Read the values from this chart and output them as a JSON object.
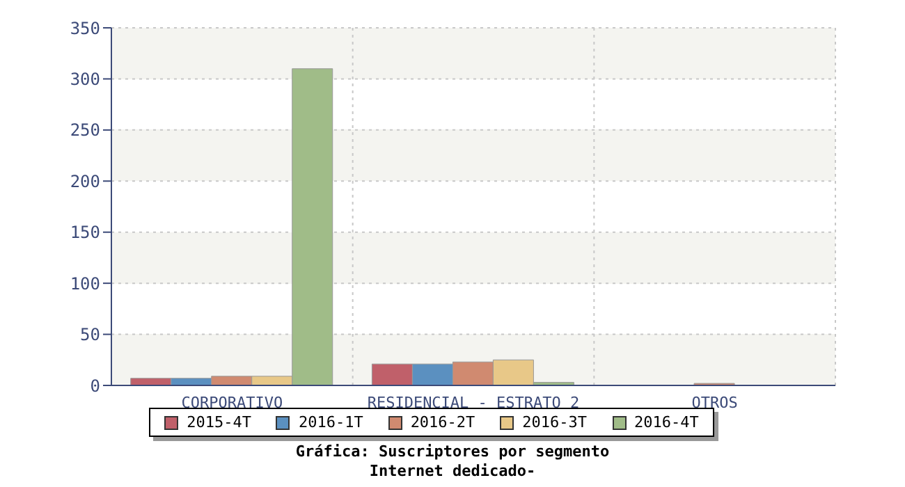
{
  "chart_data": {
    "type": "bar",
    "title": "Gráfica: Suscriptores por segmento",
    "subtitle": "Internet dedicado-",
    "categories": [
      "CORPORATIVO",
      "RESIDENCIAL - ESTRATO 2",
      "OTROS"
    ],
    "series": [
      {
        "name": "2015-4T",
        "color": "#c0606a",
        "values": [
          7,
          21,
          0
        ]
      },
      {
        "name": "2016-1T",
        "color": "#5b90c0",
        "values": [
          7,
          21,
          0
        ]
      },
      {
        "name": "2016-2T",
        "color": "#d08a70",
        "values": [
          9,
          23,
          2
        ]
      },
      {
        "name": "2016-3T",
        "color": "#e8c888",
        "values": [
          9,
          25,
          0
        ]
      },
      {
        "name": "2016-4T",
        "color": "#a0bc88",
        "values": [
          310,
          3,
          0
        ]
      }
    ],
    "ylim": [
      0,
      350
    ],
    "yticks": [
      0,
      50,
      100,
      150,
      200,
      250,
      300,
      350
    ],
    "grid": true,
    "legend": "bottom"
  }
}
